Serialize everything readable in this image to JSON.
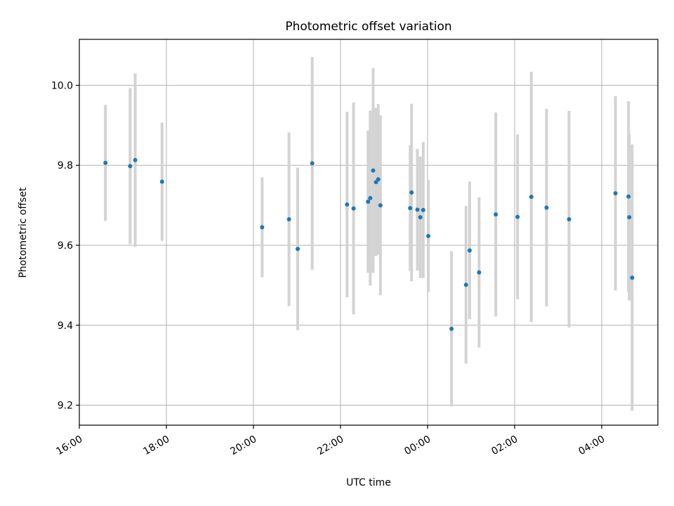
{
  "chart_data": {
    "type": "scatter",
    "title": "Photometric offset variation",
    "xlabel": "UTC time",
    "ylabel": "Photometric offset",
    "x_unit": "UTC time (HH:MM)",
    "xlim": [
      "15:59",
      "05:20 (+1 day)"
    ],
    "ylim": [
      9.15,
      10.115
    ],
    "x_ticks": [
      "16:00",
      "18:00",
      "20:00",
      "22:00",
      "00:00",
      "02:00",
      "04:00"
    ],
    "y_ticks": [
      "9.2",
      "9.4",
      "9.6",
      "9.8",
      "10.0"
    ],
    "grid": true,
    "marker_color": "#1f77b4",
    "errorbar_color": "#d3d3d3",
    "points": [
      {
        "time": "16:36",
        "y": 9.806,
        "yerr": 0.145
      },
      {
        "time": "17:10",
        "y": 9.798,
        "yerr": 0.195
      },
      {
        "time": "17:17",
        "y": 9.813,
        "yerr": 0.217
      },
      {
        "time": "17:54",
        "y": 9.759,
        "yerr": 0.148
      },
      {
        "time": "20:12",
        "y": 9.645,
        "yerr": 0.125
      },
      {
        "time": "20:49",
        "y": 9.665,
        "yerr": 0.217
      },
      {
        "time": "21:01",
        "y": 9.591,
        "yerr": 0.203
      },
      {
        "time": "21:21",
        "y": 9.805,
        "yerr": 0.266
      },
      {
        "time": "22:09",
        "y": 9.702,
        "yerr": 0.232
      },
      {
        "time": "22:18",
        "y": 9.692,
        "yerr": 0.265
      },
      {
        "time": "22:38",
        "y": 9.709,
        "yerr": 0.178
      },
      {
        "time": "22:41",
        "y": 9.718,
        "yerr": 0.219
      },
      {
        "time": "22:45",
        "y": 9.787,
        "yerr": 0.256
      },
      {
        "time": "22:49",
        "y": 9.758,
        "yerr": 0.185
      },
      {
        "time": "22:52",
        "y": 9.765,
        "yerr": 0.188
      },
      {
        "time": "22:55",
        "y": 9.7,
        "yerr": 0.225
      },
      {
        "time": "23:36",
        "y": 9.693,
        "yerr": 0.157
      },
      {
        "time": "23:38",
        "y": 9.732,
        "yerr": 0.222
      },
      {
        "time": "23:46",
        "y": 9.689,
        "yerr": 0.152
      },
      {
        "time": "23:50",
        "y": 9.67,
        "yerr": 0.152
      },
      {
        "time": "23:54",
        "y": 9.688,
        "yerr": 0.17
      },
      {
        "time": "00:01",
        "y": 9.623,
        "yerr": 0.14
      },
      {
        "time": "00:33",
        "y": 9.391,
        "yerr": 0.194
      },
      {
        "time": "00:53",
        "y": 9.501,
        "yerr": 0.197
      },
      {
        "time": "00:58",
        "y": 9.587,
        "yerr": 0.172
      },
      {
        "time": "01:11",
        "y": 9.532,
        "yerr": 0.188
      },
      {
        "time": "01:34",
        "y": 9.677,
        "yerr": 0.255
      },
      {
        "time": "02:04",
        "y": 9.671,
        "yerr": 0.206
      },
      {
        "time": "02:23",
        "y": 9.721,
        "yerr": 0.313
      },
      {
        "time": "02:44",
        "y": 9.694,
        "yerr": 0.247
      },
      {
        "time": "03:15",
        "y": 9.665,
        "yerr": 0.271
      },
      {
        "time": "04:19",
        "y": 9.73,
        "yerr": 0.243
      },
      {
        "time": "04:37",
        "y": 9.722,
        "yerr": 0.238
      },
      {
        "time": "04:38",
        "y": 9.67,
        "yerr": 0.208
      },
      {
        "time": "04:42",
        "y": 9.519,
        "yerr": 0.333
      }
    ]
  }
}
